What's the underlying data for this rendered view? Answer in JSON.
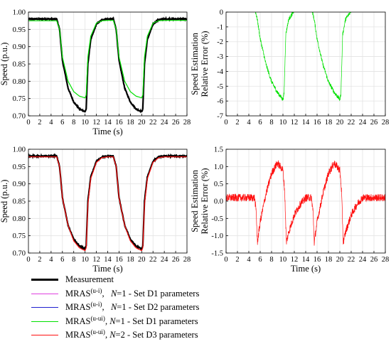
{
  "colors": {
    "measurement": "#000000",
    "mras_ui_d1": "#e040e0",
    "mras_ui_d2": "#1f1fcf",
    "mras_uui_d1": "#00e000",
    "mras_uui_d3": "#ff1010"
  },
  "chart_data": [
    {
      "type": "line",
      "panel": "top-left",
      "xlabel": "Time (s)",
      "ylabel": "Speed (p.u.)",
      "xlim": [
        0,
        28
      ],
      "ylim": [
        0.7,
        0.98
      ],
      "xticks": [
        "0",
        "2",
        "4",
        "6",
        "8",
        "10",
        "12",
        "14",
        "16",
        "18",
        "20",
        "22",
        "24",
        "26",
        "28"
      ],
      "yticks": [
        "0.70",
        "0.75",
        "0.80",
        "0.85",
        "0.90",
        "0.95",
        "1.00"
      ],
      "grid": true,
      "series": [
        {
          "name": "Measurement",
          "color": "#000000",
          "x": [
            0,
            5,
            5.5,
            6,
            7,
            8,
            9,
            10,
            10.2,
            10.5,
            11,
            12,
            13,
            14,
            15,
            15.5,
            16,
            17,
            18,
            19,
            20,
            20.2,
            20.5,
            21,
            22,
            23,
            24,
            25,
            26,
            27,
            28
          ],
          "y": [
            0.98,
            0.98,
            0.95,
            0.86,
            0.78,
            0.74,
            0.72,
            0.712,
            0.72,
            0.85,
            0.92,
            0.965,
            0.978,
            0.98,
            0.98,
            0.95,
            0.86,
            0.78,
            0.74,
            0.72,
            0.712,
            0.72,
            0.85,
            0.92,
            0.965,
            0.978,
            0.98,
            0.98,
            0.98,
            0.98,
            0.98
          ]
        },
        {
          "name": "MRAS(u-ui), N=1 - Set D1 parameters",
          "color": "#00e000",
          "x": [
            0,
            5,
            5.5,
            6,
            7,
            8,
            9,
            10,
            10.2,
            10.5,
            11,
            12,
            13,
            14,
            15,
            15.5,
            16,
            17,
            18,
            19,
            20,
            20.2,
            20.5,
            21,
            22,
            23,
            24,
            25,
            26,
            27,
            28
          ],
          "y": [
            0.975,
            0.975,
            0.95,
            0.87,
            0.8,
            0.77,
            0.757,
            0.752,
            0.76,
            0.87,
            0.93,
            0.968,
            0.975,
            0.976,
            0.976,
            0.95,
            0.87,
            0.8,
            0.77,
            0.757,
            0.752,
            0.76,
            0.87,
            0.93,
            0.968,
            0.975,
            0.976,
            0.976,
            0.976,
            0.976,
            0.976
          ]
        }
      ]
    },
    {
      "type": "line",
      "panel": "top-right",
      "xlabel": "",
      "ylabel": "Speed Estimation Relative Error (%)",
      "xlim": [
        0,
        28
      ],
      "ylim": [
        -7,
        1
      ],
      "xticks": [
        "0",
        "2",
        "4",
        "6",
        "8",
        "10",
        "12",
        "14",
        "16",
        "18",
        "20",
        "22",
        "24",
        "26",
        "28"
      ],
      "yticks": [
        "-7",
        "-6",
        "-5",
        "-4",
        "-3",
        "-2",
        "-1",
        "0"
      ],
      "grid": true,
      "series": [
        {
          "name": "MRAS(u-ui), N=1 - Set D1 parameters",
          "color": "#00e000",
          "x": [
            0,
            5,
            5.5,
            6,
            7,
            8,
            9,
            10,
            10.2,
            10.5,
            11,
            12,
            13,
            14,
            15,
            15.5,
            16,
            17,
            18,
            19,
            20,
            20.2,
            20.5,
            21,
            22,
            23,
            24,
            25,
            26,
            27,
            28
          ],
          "y": [
            0.3,
            0.3,
            -0.5,
            -1.8,
            -3.5,
            -4.7,
            -5.4,
            -5.9,
            -5.5,
            -1.5,
            -0.5,
            0.1,
            0.3,
            0.3,
            0.3,
            -0.5,
            -1.8,
            -3.5,
            -4.7,
            -5.4,
            -5.9,
            -5.5,
            -1.5,
            -0.5,
            0.1,
            0.3,
            0.3,
            0.3,
            0.3,
            0.3,
            0.3
          ]
        }
      ]
    },
    {
      "type": "line",
      "panel": "bottom-left",
      "xlabel": "Time (s)",
      "ylabel": "Speed (p.u.)",
      "xlim": [
        0,
        28
      ],
      "ylim": [
        0.7,
        0.98
      ],
      "xticks": [
        "0",
        "2",
        "4",
        "6",
        "8",
        "10",
        "12",
        "14",
        "16",
        "18",
        "20",
        "22",
        "24",
        "26",
        "28"
      ],
      "yticks": [
        "0.70",
        "0.75",
        "0.80",
        "0.85",
        "0.90",
        "0.95",
        "1.00"
      ],
      "grid": true,
      "series": [
        {
          "name": "Measurement",
          "color": "#000000",
          "x": [
            0,
            5,
            5.5,
            6,
            7,
            8,
            9,
            10,
            10.2,
            10.5,
            11,
            12,
            13,
            14,
            15,
            15.5,
            16,
            17,
            18,
            19,
            20,
            20.2,
            20.5,
            21,
            22,
            23,
            24,
            25,
            26,
            27,
            28
          ],
          "y": [
            0.98,
            0.98,
            0.95,
            0.86,
            0.78,
            0.74,
            0.72,
            0.712,
            0.72,
            0.85,
            0.92,
            0.965,
            0.978,
            0.98,
            0.98,
            0.95,
            0.86,
            0.78,
            0.74,
            0.72,
            0.712,
            0.72,
            0.85,
            0.92,
            0.965,
            0.978,
            0.98,
            0.98,
            0.98,
            0.98,
            0.98
          ]
        },
        {
          "name": "MRAS(u-ui), N=2 - Set D3 parameters",
          "color": "#ff1010",
          "x": [
            0,
            5,
            5.5,
            6,
            7,
            8,
            9,
            10,
            10.2,
            10.5,
            11,
            12,
            13,
            14,
            15,
            15.5,
            16,
            17,
            18,
            19,
            20,
            20.2,
            20.5,
            21,
            22,
            23,
            24,
            25,
            26,
            27,
            28
          ],
          "y": [
            0.978,
            0.978,
            0.95,
            0.86,
            0.78,
            0.735,
            0.715,
            0.707,
            0.715,
            0.84,
            0.915,
            0.962,
            0.976,
            0.978,
            0.978,
            0.95,
            0.86,
            0.78,
            0.735,
            0.715,
            0.707,
            0.715,
            0.84,
            0.915,
            0.962,
            0.976,
            0.978,
            0.978,
            0.978,
            0.978,
            0.978
          ]
        }
      ]
    },
    {
      "type": "line",
      "panel": "bottom-right",
      "xlabel": "Time (s)",
      "ylabel": "Speed Estimation Relative Error (%)",
      "xlim": [
        0,
        28
      ],
      "ylim": [
        -1.5,
        1.5
      ],
      "xticks": [
        "0",
        "2",
        "4",
        "6",
        "8",
        "10",
        "12",
        "14",
        "16",
        "18",
        "20",
        "22",
        "24",
        "26",
        "28"
      ],
      "yticks": [
        "-1.5",
        "-1.0",
        "-0.5",
        "0.0",
        "0.5",
        "1.0",
        "1.5"
      ],
      "grid": true,
      "series": [
        {
          "name": "MRAS(u-ui), N=2 - Set D3 parameters",
          "color": "#ff1010",
          "x": [
            0,
            5,
            5.3,
            5.5,
            6,
            7,
            8,
            9,
            10,
            10.3,
            10.6,
            11,
            12,
            13,
            14,
            15,
            15.3,
            15.5,
            16,
            17,
            18,
            19,
            20,
            20.3,
            20.6,
            21,
            22,
            23,
            24,
            25,
            26,
            27,
            28
          ],
          "y": [
            0.1,
            0.1,
            -0.3,
            -1.2,
            -0.6,
            0.2,
            0.8,
            1.1,
            0.9,
            0.3,
            -1.2,
            -0.9,
            -0.4,
            -0.1,
            0.1,
            0.1,
            -0.3,
            -1.2,
            -0.6,
            0.2,
            0.8,
            1.1,
            0.9,
            0.3,
            -1.2,
            -0.9,
            -0.4,
            -0.1,
            0.1,
            0.1,
            0.1,
            0.1,
            0.1
          ]
        }
      ]
    }
  ],
  "legend": {
    "items": [
      {
        "label_main": "Measurement",
        "label_sup": "",
        "label_n": "",
        "label_rest": ""
      },
      {
        "label_main": "MRAS",
        "label_sup": "(u-i)",
        "label_n": "N",
        "label_rest": "=1 - Set D1 parameters"
      },
      {
        "label_main": "MRAS",
        "label_sup": "(u-i)",
        "label_n": "N",
        "label_rest": "=1 - Set D2 parameters"
      },
      {
        "label_main": "MRAS",
        "label_sup": "(u-ui)",
        "label_n": "N",
        "label_rest": "=1 - Set D1 parameters"
      },
      {
        "label_main": "MRAS",
        "label_sup": "(u-ui)",
        "label_n": "N",
        "label_rest": "=2 - Set D3 parameters"
      }
    ]
  }
}
